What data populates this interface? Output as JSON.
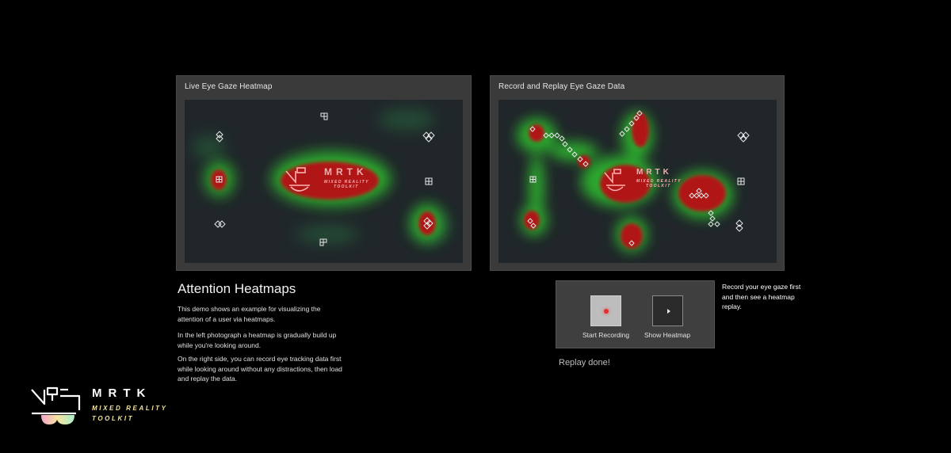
{
  "panels": {
    "live": {
      "title": "Live Eye Gaze Heatmap"
    },
    "replay": {
      "title": "Record and Replay Eye Gaze Data"
    }
  },
  "overlay_logo": {
    "word": "MRTK",
    "line1": "MIXED REALITY",
    "line2": "TOOLKIT"
  },
  "description": {
    "heading": "Attention Heatmaps",
    "paragraphs": [
      "This demo shows an example for visualizing the attention of a user via heatmaps.",
      "In the left photograph a heatmap is gradually build up while you're looking around.",
      "On the right side, you can record eye tracking data first while looking around without any distractions, then load and replay the data."
    ]
  },
  "controls": {
    "start_recording": "Start Recording",
    "show_heatmap": "Show Heatmap",
    "side_note": "Record your eye gaze first and then see a heatmap replay.",
    "status": "Replay done!"
  },
  "brand": {
    "word": "MRTK",
    "line1": "MIXED REALITY",
    "line2": "TOOLKIT"
  },
  "colors": {
    "heat_hot": "#b01818",
    "heat_warm": "#2fbf2f",
    "canvas_bg": "#20262a",
    "record_dot": "#e03030",
    "brand_yellow": "#f2e39a"
  }
}
